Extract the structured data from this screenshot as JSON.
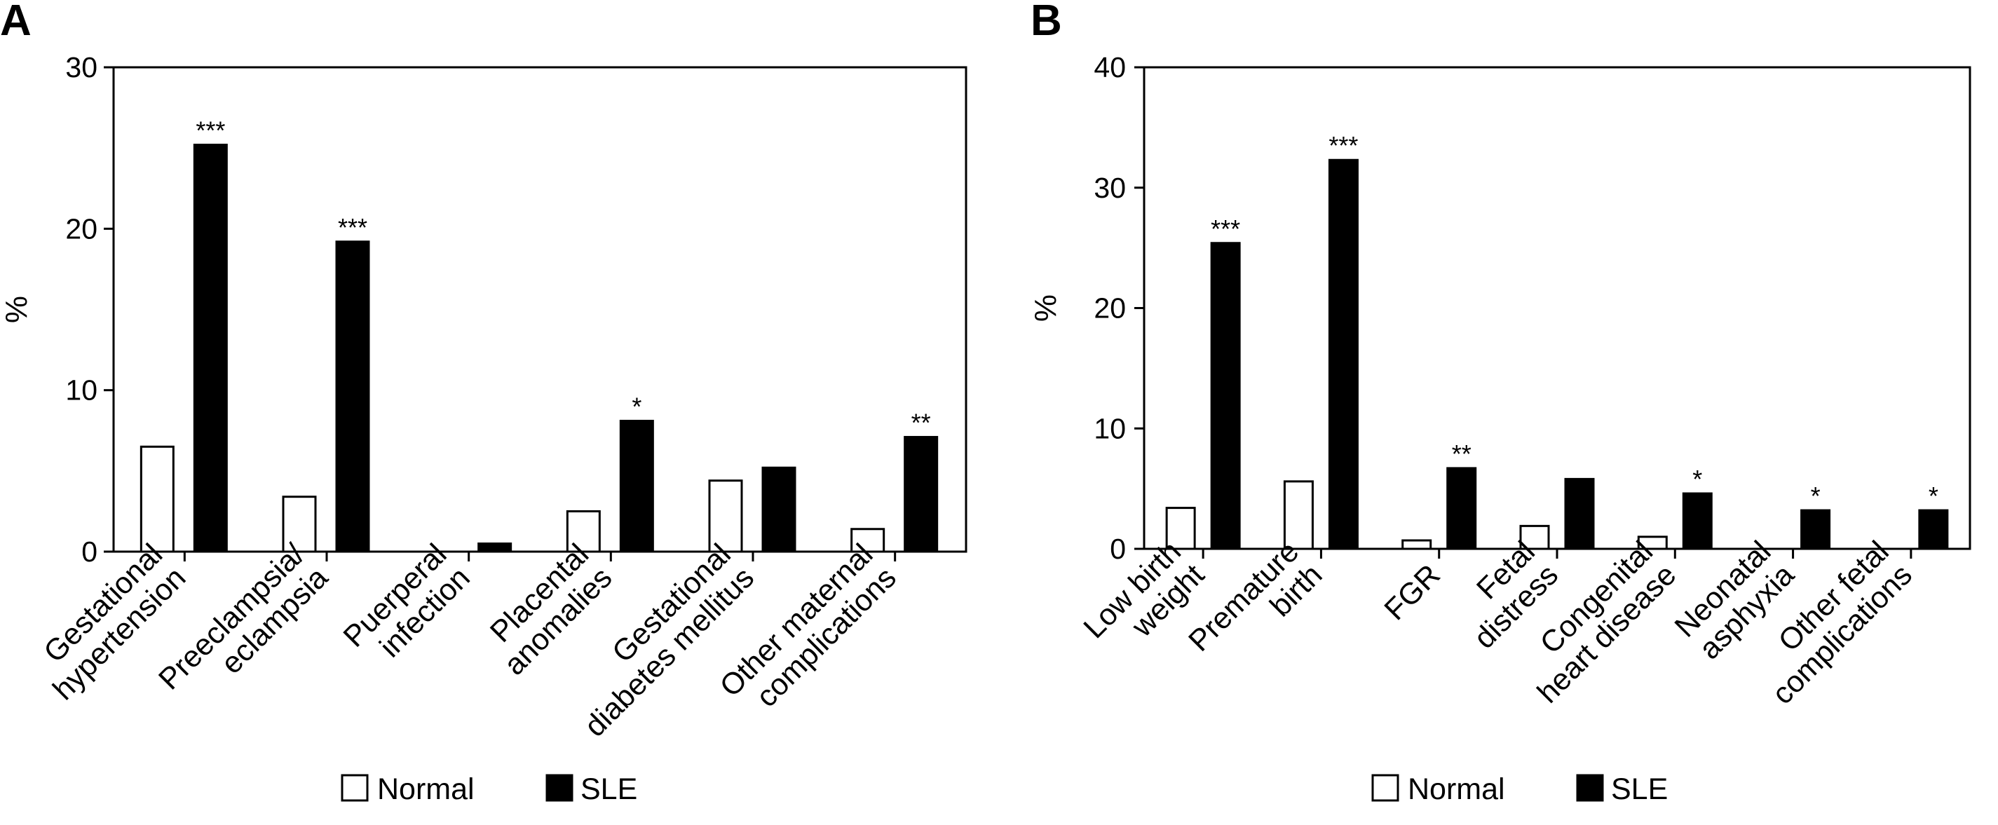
{
  "panels": [
    {
      "id": "A",
      "label": "A",
      "chart_data": {
        "type": "bar",
        "title": "",
        "xlabel": "",
        "ylabel": "%",
        "ylim": [
          0,
          30
        ],
        "yticks": [
          "0",
          "10",
          "20",
          "30"
        ],
        "grid": false,
        "legend_position": "bottom",
        "categories": [
          [
            "Gestational",
            "hypertension"
          ],
          [
            "Preeclampsia/",
            "eclampsia"
          ],
          [
            "Puerperal",
            "infection"
          ],
          [
            "Placental",
            "anomalies"
          ],
          [
            "Gestational",
            "diabetes mellitus"
          ],
          [
            "Other maternal",
            "complications"
          ]
        ],
        "series": [
          {
            "name": "Normal",
            "values": [
              6.5,
              3.4,
              0,
              2.5,
              4.4,
              1.4
            ],
            "fill": "#ffffff"
          },
          {
            "name": "SLE",
            "values": [
              25.2,
              19.2,
              0.5,
              8.1,
              5.2,
              7.1
            ],
            "fill": "#000000"
          }
        ],
        "significance": [
          "***",
          "***",
          "",
          "*",
          "",
          "**"
        ],
        "significance_series": [
          "SLE",
          "SLE",
          "",
          "SLE",
          "",
          "SLE"
        ]
      }
    },
    {
      "id": "B",
      "label": "B",
      "chart_data": {
        "type": "bar",
        "title": "",
        "xlabel": "",
        "ylabel": "%",
        "ylim": [
          0,
          40
        ],
        "yticks": [
          "0",
          "10",
          "20",
          "30",
          "40"
        ],
        "grid": false,
        "legend_position": "bottom",
        "categories": [
          [
            "Low birth",
            "weight"
          ],
          [
            "Premature",
            "birth"
          ],
          [
            "FGR"
          ],
          [
            "Fetal",
            "distress"
          ],
          [
            "Congenital",
            "heart disease"
          ],
          [
            "Neonatal",
            "asphyxia"
          ],
          [
            "Other fetal",
            "complications"
          ]
        ],
        "series": [
          {
            "name": "Normal",
            "values": [
              3.4,
              5.6,
              0.7,
              1.9,
              1.0,
              0,
              0
            ],
            "fill": "#ffffff"
          },
          {
            "name": "SLE",
            "values": [
              25.4,
              32.3,
              6.7,
              5.8,
              4.6,
              3.2,
              3.2
            ],
            "fill": "#000000"
          }
        ],
        "significance": [
          "***",
          "***",
          "**",
          "",
          "*",
          "*",
          "*"
        ],
        "significance_series": [
          "SLE",
          "SLE",
          "SLE",
          "",
          "SLE",
          "SLE",
          "SLE"
        ]
      }
    }
  ],
  "legend": {
    "items": [
      {
        "label": "Normal",
        "fill": "#ffffff"
      },
      {
        "label": "SLE",
        "fill": "#000000"
      }
    ]
  },
  "colors": {
    "axis": "#000000",
    "bar_outline": "#000000",
    "background": "#ffffff"
  }
}
